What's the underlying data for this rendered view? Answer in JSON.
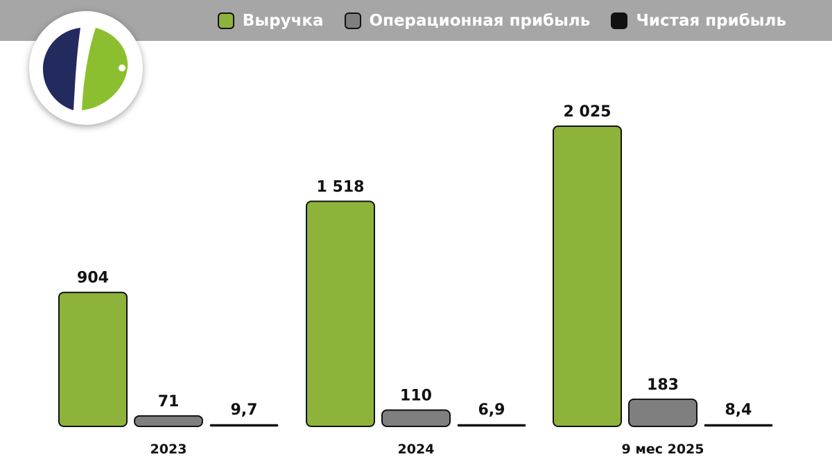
{
  "colors": {
    "revenue": "#8eb33b",
    "operating_profit": "#7f7f7f",
    "net_profit": "#111111",
    "legend_background": "#a6a6a6",
    "logo_navy": "#222a5e",
    "logo_green": "#8cbf2f"
  },
  "logo": {
    "icon": "company-logo-icon"
  },
  "legend": [
    {
      "label": "Выручка",
      "color": "#8eb33b"
    },
    {
      "label": "Операционная прибыль",
      "color": "#7f7f7f"
    },
    {
      "label": "Чистая прибыль",
      "color": "#111111"
    }
  ],
  "chart_data": {
    "type": "bar",
    "categories": [
      "2023",
      "2024",
      "9 мес 2025"
    ],
    "series": [
      {
        "name": "Выручка",
        "values": [
          904,
          1518,
          2025
        ],
        "labels": [
          "904",
          "1 518",
          "2 025"
        ]
      },
      {
        "name": "Операционная прибыль",
        "values": [
          71,
          110,
          183
        ],
        "labels": [
          "71",
          "110",
          "183"
        ]
      },
      {
        "name": "Чистая прибыль",
        "values": [
          9.7,
          6.9,
          8.4
        ],
        "labels": [
          "9,7",
          "6,9",
          "8,4"
        ]
      }
    ],
    "title": "",
    "xlabel": "",
    "ylabel": "",
    "ylim": [
      0,
      2025
    ],
    "grid": false,
    "legend_position": "top-right"
  }
}
